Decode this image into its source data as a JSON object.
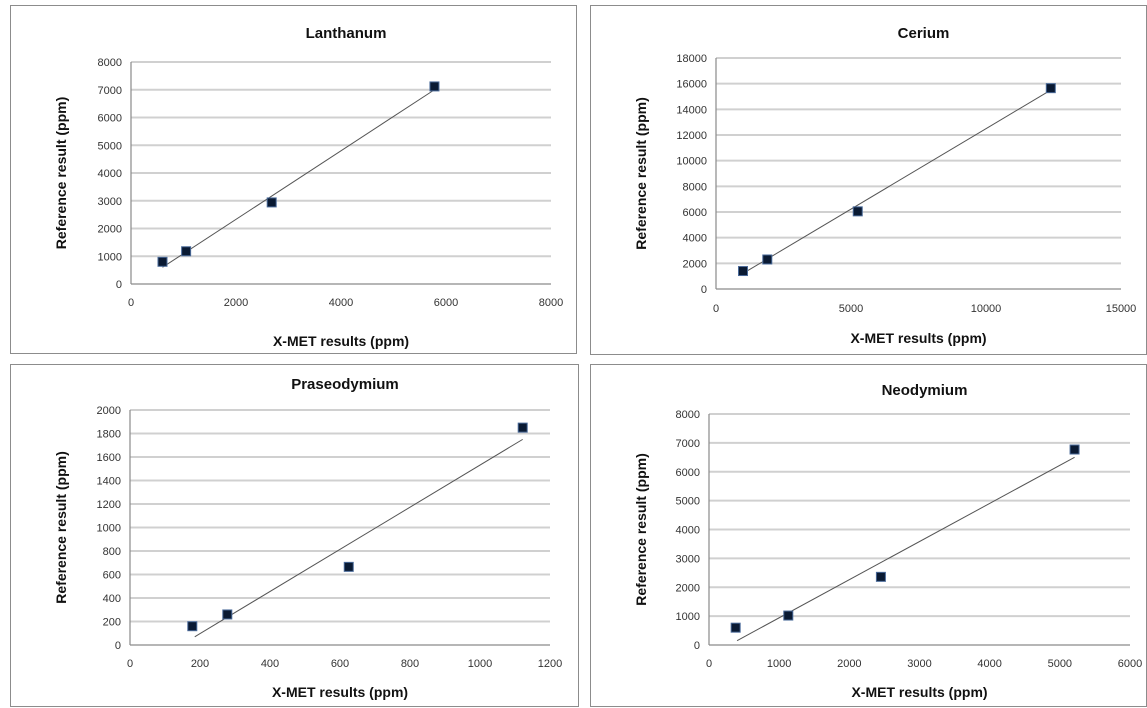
{
  "chart_data": [
    {
      "type": "scatter",
      "title": "Lanthanum",
      "xlabel": "X-MET results (ppm)",
      "ylabel": "Reference result (ppm)",
      "xlim": [
        0,
        8000
      ],
      "ylim": [
        0,
        8000
      ],
      "xticks": [
        "0",
        "2000",
        "4000",
        "6000",
        "8000"
      ],
      "yticks": [
        "0",
        "1000",
        "2000",
        "3000",
        "4000",
        "5000",
        "6000",
        "7000",
        "8000"
      ],
      "grid": "horizontal",
      "legend": "none",
      "series": [
        {
          "x": [
            600,
            1050,
            2680,
            5780
          ],
          "y": [
            800,
            1180,
            2940,
            7120
          ]
        }
      ],
      "trendline": {
        "x": [
          600,
          5780
        ],
        "y": [
          600,
          7000
        ]
      }
    },
    {
      "type": "scatter",
      "title": "Cerium",
      "xlabel": "X-MET results (ppm)",
      "ylabel": "Reference result (ppm)",
      "xlim": [
        0,
        15000
      ],
      "ylim": [
        0,
        18000
      ],
      "xticks": [
        "0",
        "5000",
        "10000",
        "15000"
      ],
      "yticks": [
        "0",
        "2000",
        "4000",
        "6000",
        "8000",
        "10000",
        "12000",
        "14000",
        "16000",
        "18000"
      ],
      "grid": "horizontal",
      "legend": "none",
      "series": [
        {
          "x": [
            1000,
            1900,
            5250,
            12400
          ],
          "y": [
            1400,
            2300,
            6050,
            15650
          ]
        }
      ],
      "trendline": {
        "x": [
          950,
          12400
        ],
        "y": [
          1150,
          15500
        ]
      }
    },
    {
      "type": "scatter",
      "title": "Praseodymium",
      "xlabel": "X-MET results (ppm)",
      "ylabel": "Reference result (ppm)",
      "xlim": [
        0,
        1200
      ],
      "ylim": [
        0,
        2000
      ],
      "xticks": [
        "0",
        "200",
        "400",
        "600",
        "800",
        "1000",
        "1200"
      ],
      "yticks": [
        "0",
        "200",
        "400",
        "600",
        "800",
        "1000",
        "1200",
        "1400",
        "1600",
        "1800",
        "2000"
      ],
      "grid": "horizontal",
      "legend": "none",
      "series": [
        {
          "x": [
            178,
            278,
            625,
            1122
          ],
          "y": [
            160,
            260,
            665,
            1850
          ]
        }
      ],
      "trendline": {
        "x": [
          185,
          1122
        ],
        "y": [
          70,
          1750
        ]
      }
    },
    {
      "type": "scatter",
      "title": "Neodymium",
      "xlabel": "X-MET results (ppm)",
      "ylabel": "Reference result (ppm)",
      "xlim": [
        0,
        6000
      ],
      "ylim": [
        0,
        8000
      ],
      "xticks": [
        "0",
        "1000",
        "2000",
        "3000",
        "4000",
        "5000",
        "6000"
      ],
      "yticks": [
        "0",
        "1000",
        "2000",
        "3000",
        "4000",
        "5000",
        "6000",
        "7000",
        "8000"
      ],
      "grid": "horizontal",
      "legend": "none",
      "series": [
        {
          "x": [
            380,
            1130,
            2450,
            5210
          ],
          "y": [
            600,
            1020,
            2360,
            6770
          ]
        }
      ],
      "trendline": {
        "x": [
          400,
          5210
        ],
        "y": [
          150,
          6500
        ]
      }
    }
  ]
}
